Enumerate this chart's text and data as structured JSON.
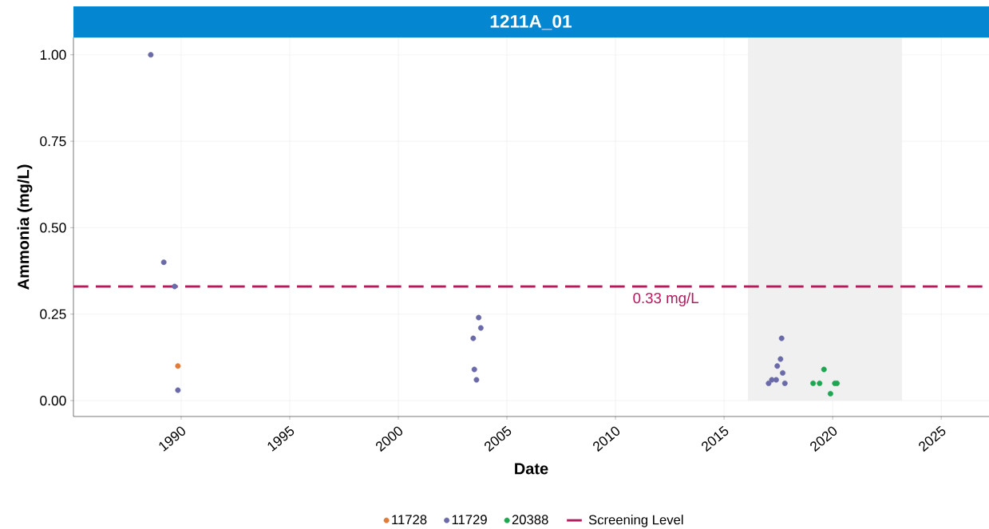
{
  "chart_data": {
    "type": "scatter",
    "title": "1211A_01",
    "xlabel": "Date",
    "ylabel": "Ammonia (mg/L)",
    "series": [
      {
        "name": "11728",
        "color": "#e07b39",
        "x": [
          1989.85
        ],
        "values": [
          0.1
        ]
      },
      {
        "name": "11729",
        "color": "#6a6aa8",
        "x": [
          1988.6,
          1989.2,
          1989.7,
          1989.85,
          2003.7,
          2003.8,
          2003.45,
          2003.5,
          2003.6,
          2017.65,
          2017.6,
          2017.45,
          2017.7,
          2017.8,
          2017.4,
          2017.2,
          2017.05
        ],
        "values": [
          1.0,
          0.4,
          0.33,
          0.03,
          0.24,
          0.21,
          0.18,
          0.09,
          0.06,
          0.18,
          0.12,
          0.1,
          0.08,
          0.05,
          0.06,
          0.06,
          0.05
        ]
      },
      {
        "name": "20388",
        "color": "#1fa653",
        "x": [
          2019.1,
          2019.4,
          2019.6,
          2019.9,
          2020.1,
          2020.2
        ],
        "values": [
          0.05,
          0.05,
          0.09,
          0.02,
          0.05,
          0.05
        ]
      }
    ],
    "ref_lines": [
      {
        "axis": "y",
        "value": 0.33,
        "label": "Screening Level",
        "color": "#b5195b",
        "line_style": "dashed"
      }
    ],
    "bands": [
      {
        "axis": "x",
        "from": 2016.1,
        "to": 2023.2,
        "color": "#f0f0f0"
      }
    ],
    "annotations": [
      "0.33 mg/L"
    ],
    "xlim": [
      1985.04,
      2027.2
    ],
    "ylim": [
      -0.046,
      1.05
    ],
    "xticks": [
      1990,
      1995,
      2000,
      2005,
      2010,
      2015,
      2020,
      2025
    ],
    "yticks": [
      {
        "value": 0,
        "label": "0.00"
      },
      {
        "value": 0.25,
        "label": "0.25"
      },
      {
        "value": 0.5,
        "label": "0.50"
      },
      {
        "value": 0.75,
        "label": "0.75"
      },
      {
        "value": 1,
        "label": "1.00"
      }
    ],
    "grid": true,
    "legend": "bottom",
    "marker": "circle"
  }
}
